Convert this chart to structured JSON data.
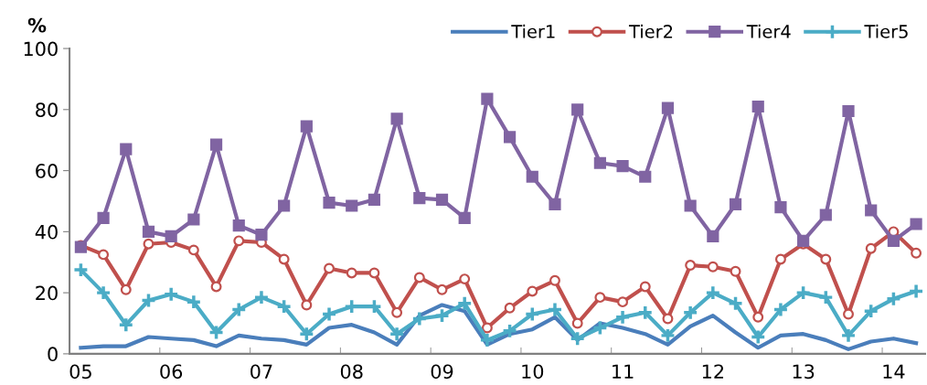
{
  "chart_data": {
    "type": "line",
    "ylabel": "%",
    "categories": [
      "05",
      null,
      null,
      null,
      "06",
      null,
      null,
      null,
      "07",
      null,
      null,
      null,
      "08",
      null,
      null,
      null,
      "09",
      null,
      null,
      null,
      "10",
      null,
      null,
      null,
      "11",
      null,
      null,
      null,
      "12",
      null,
      null,
      null,
      "13",
      null,
      null,
      null,
      "14",
      null
    ],
    "series": [
      {
        "name": "Tier1",
        "color": "#4a7ebb",
        "marker": "none",
        "values": [
          2,
          2.5,
          2.5,
          5.5,
          5,
          4.5,
          2.5,
          6,
          5,
          4.5,
          3,
          8.5,
          9.5,
          7,
          3,
          12.5,
          16,
          14,
          3,
          6.5,
          8,
          12,
          4.5,
          10,
          8.5,
          6.5,
          3,
          9,
          12.5,
          7,
          2,
          6,
          6.5,
          4.5,
          1.5,
          4,
          5,
          3.5
        ]
      },
      {
        "name": "Tier2",
        "color": "#c0504d",
        "marker": "circle",
        "values": [
          35.5,
          32.5,
          21,
          36,
          36.5,
          34,
          22,
          37,
          36.5,
          31,
          16,
          28,
          26.5,
          26.5,
          13.5,
          25,
          21,
          24.5,
          8.5,
          15,
          20.5,
          24,
          10,
          18.5,
          17,
          22,
          11.5,
          29,
          28.5,
          27,
          12,
          31,
          36,
          31,
          13,
          34.5,
          40,
          33
        ]
      },
      {
        "name": "Tier4",
        "color": "#8064a2",
        "marker": "square",
        "values": [
          35,
          44.5,
          67,
          40,
          38.5,
          44,
          68.5,
          42,
          39,
          48.5,
          74.5,
          49.5,
          48.5,
          50.5,
          77,
          51,
          50.5,
          44.5,
          83.5,
          71,
          58,
          49,
          80,
          62.5,
          61.5,
          58,
          80.5,
          48.5,
          38.5,
          49,
          81,
          48,
          37,
          45.5,
          79.5,
          47,
          37,
          42.5
        ]
      },
      {
        "name": "Tier5",
        "color": "#4bacc6",
        "marker": "cross",
        "values": [
          27.5,
          20,
          9.5,
          17.5,
          19.5,
          17,
          7,
          14.5,
          18.5,
          15.5,
          6.5,
          13,
          15.5,
          15.5,
          6.5,
          11.5,
          12.5,
          16.5,
          4.5,
          7.5,
          13,
          14.5,
          5,
          8.5,
          12,
          13.5,
          6,
          13.5,
          20,
          16.5,
          5.5,
          14.5,
          20,
          18.5,
          6,
          14,
          18,
          20.5
        ]
      }
    ],
    "ylim": [
      0,
      100
    ],
    "yticks": [
      0,
      20,
      40,
      60,
      80,
      100
    ],
    "grid": false,
    "legend": "top right"
  }
}
